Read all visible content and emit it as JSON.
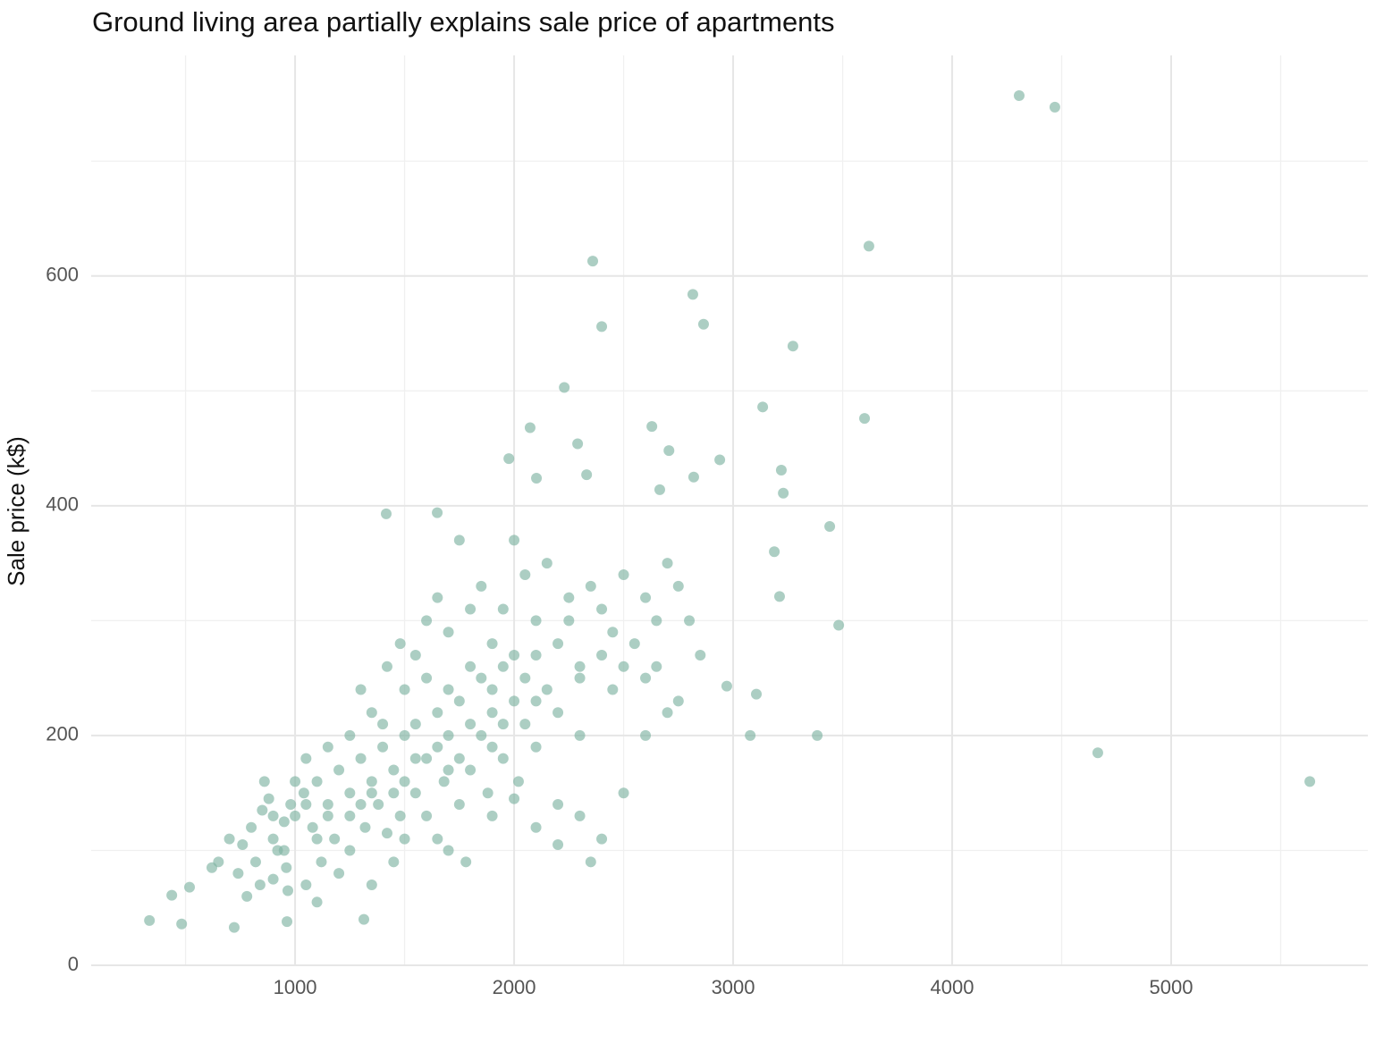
{
  "chart_data": {
    "type": "scatter",
    "title": "Ground living area partially explains sale price of apartments",
    "ylabel": "Sale price (k$)",
    "color": "#7fb3a3",
    "xlim": [
      69,
      5898
    ],
    "ylim": [
      0,
      792
    ],
    "xticks": [
      1000,
      2000,
      3000,
      4000,
      5000
    ],
    "yticks": [
      0,
      200,
      400,
      600
    ],
    "xgrid_minor": [
      500,
      1500,
      2500,
      3500,
      4500,
      5500
    ],
    "ygrid_minor": [
      100,
      300,
      500,
      700
    ],
    "grid": true,
    "x": [
      4306,
      4469,
      3620,
      2359,
      2816,
      2400,
      2865,
      3273,
      2229,
      3135,
      3600,
      2629,
      2073,
      2290,
      2707,
      2939,
      1976,
      3220,
      2331,
      2820,
      2102,
      3229,
      2665,
      1416,
      1649,
      3441,
      3188,
      3212,
      3482,
      2971,
      3106,
      3078,
      3384,
      4665,
      5633,
      335,
      482,
      437,
      518,
      722,
      963,
      1314,
      967,
      800,
      850,
      900,
      950,
      880,
      920,
      760,
      820,
      860,
      980,
      1000,
      1040,
      1080,
      1100,
      1150,
      1200,
      1250,
      1300,
      1350,
      1400,
      1450,
      1500,
      1550,
      1600,
      1650,
      1700,
      1750,
      1800,
      1850,
      1900,
      1950,
      2000,
      2050,
      2100,
      2150,
      2200,
      2250,
      2300,
      2350,
      2400,
      2450,
      2500,
      2550,
      2600,
      2650,
      2700,
      2750,
      2800,
      2850,
      1120,
      1180,
      1250,
      1320,
      1380,
      1420,
      1480,
      1550,
      1600,
      1680,
      1750,
      1800,
      1880,
      1950,
      2020,
      2100,
      2200,
      2300,
      2400,
      2500,
      2600,
      1300,
      1350,
      1420,
      1480,
      1550,
      1600,
      1650,
      1700,
      1750,
      1800,
      1850,
      1900,
      1950,
      2000,
      2050,
      2100,
      2150,
      2250,
      2400,
      2500,
      2600,
      700,
      650,
      620,
      740,
      780,
      840,
      900,
      960,
      1050,
      1100,
      1200,
      1350,
      1450,
      1500,
      1650,
      1700,
      1780,
      1900,
      2000,
      2100,
      2200,
      2350,
      1000,
      1050,
      1150,
      1250,
      1400,
      1500,
      1600,
      1700,
      1800,
      1900,
      2000,
      2200,
      2300,
      2450,
      2650,
      2700,
      2750,
      950,
      1050,
      1150,
      1250,
      1350,
      1450,
      1550,
      1650,
      1750,
      1850,
      1950,
      2050,
      900,
      1100,
      1300,
      1500,
      1700,
      1900,
      2100,
      2300
    ],
    "values": [
      757,
      747,
      626,
      613,
      584,
      556,
      558,
      539,
      503,
      486,
      476,
      469,
      468,
      454,
      448,
      440,
      441,
      431,
      427,
      425,
      424,
      411,
      414,
      393,
      394,
      382,
      360,
      321,
      296,
      243,
      236,
      200,
      200,
      185,
      160,
      39,
      36,
      61,
      68,
      33,
      38,
      40,
      65,
      120,
      135,
      110,
      125,
      145,
      100,
      105,
      90,
      160,
      140,
      130,
      150,
      120,
      160,
      140,
      170,
      150,
      180,
      160,
      190,
      170,
      200,
      210,
      180,
      220,
      200,
      230,
      210,
      250,
      220,
      260,
      230,
      250,
      270,
      240,
      280,
      300,
      260,
      330,
      310,
      290,
      340,
      280,
      320,
      300,
      350,
      330,
      300,
      270,
      90,
      110,
      100,
      120,
      140,
      115,
      130,
      150,
      130,
      160,
      140,
      170,
      150,
      180,
      160,
      190,
      140,
      130,
      110,
      150,
      200,
      240,
      220,
      260,
      280,
      270,
      300,
      320,
      290,
      370,
      310,
      330,
      280,
      310,
      370,
      340,
      300,
      350,
      320,
      270,
      260,
      250,
      110,
      90,
      85,
      80,
      60,
      70,
      75,
      85,
      70,
      55,
      80,
      70,
      90,
      110,
      110,
      100,
      90,
      130,
      145,
      120,
      105,
      90,
      160,
      180,
      190,
      200,
      210,
      240,
      250,
      240,
      260,
      240,
      270,
      220,
      250,
      240,
      260,
      220,
      230,
      100,
      140,
      130,
      130,
      150,
      150,
      180,
      190,
      180,
      200,
      210,
      210,
      130,
      110,
      140,
      160,
      170,
      190,
      230,
      200
    ]
  }
}
